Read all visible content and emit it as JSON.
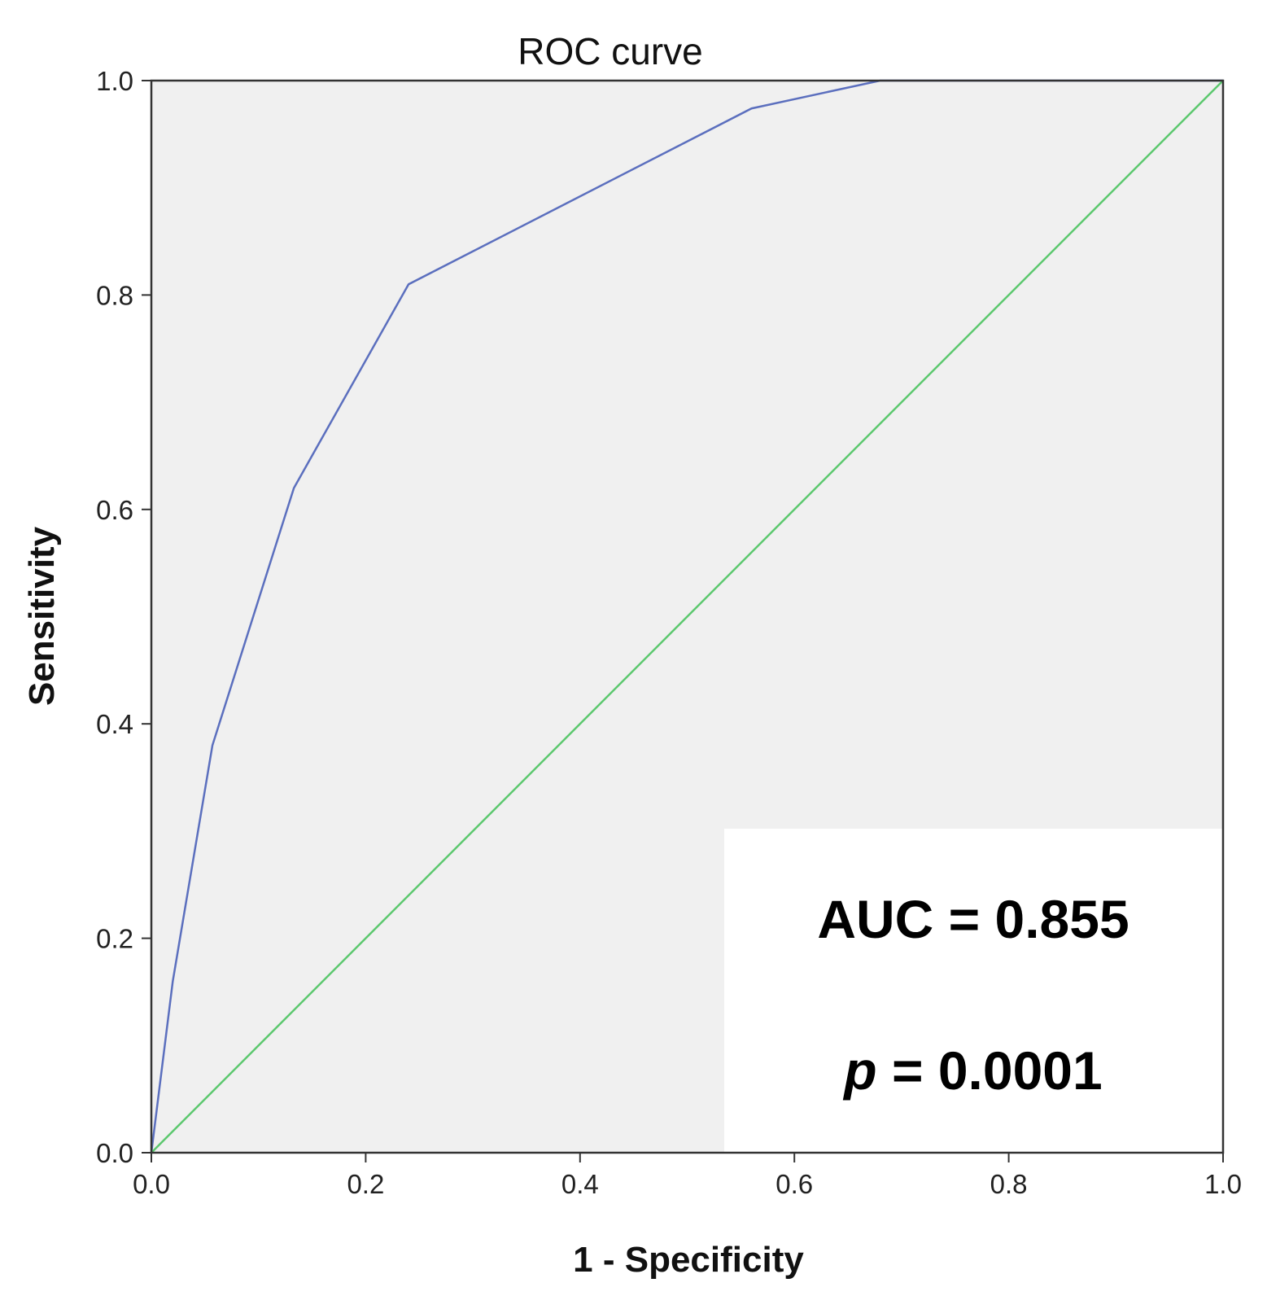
{
  "chart_data": {
    "type": "line",
    "title": "ROC curve",
    "xlabel": "1 - Specificity",
    "ylabel": "Sensitivity",
    "xlim": [
      0,
      1
    ],
    "ylim": [
      0,
      1
    ],
    "xticks": [
      "0.0",
      "0.2",
      "0.4",
      "0.6",
      "0.8",
      "1.0"
    ],
    "yticks": [
      "0.0",
      "0.2",
      "0.4",
      "0.6",
      "0.8",
      "1.0"
    ],
    "grid": false,
    "plot_background": "#f0f0f0",
    "series": [
      {
        "color": "#5b6fbe",
        "x": [
          0.0,
          0.02,
          0.057,
          0.133,
          0.24,
          0.56,
          0.68,
          1.0
        ],
        "y": [
          0.0,
          0.16,
          0.38,
          0.62,
          0.81,
          0.974,
          1.0,
          1.0
        ]
      },
      {
        "color": "#5cc86e",
        "x": [
          0.0,
          1.0
        ],
        "y": [
          0.0,
          1.0
        ]
      }
    ],
    "annotations": {
      "auc": "AUC = 0.855",
      "p_prefix": "p",
      "p_rest": " = 0.0001"
    }
  }
}
